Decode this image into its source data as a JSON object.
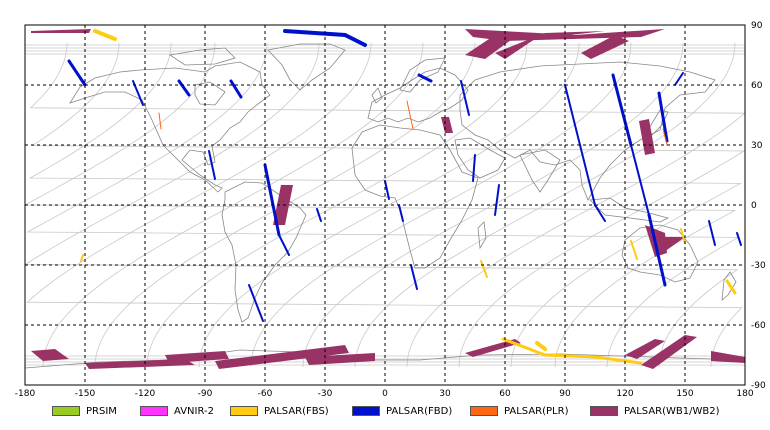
{
  "chart_data": {
    "type": "map-coverage",
    "projection": "equirectangular",
    "xlim": [
      -180,
      180
    ],
    "ylim": [
      -90,
      90
    ],
    "x_ticks": [
      "-180",
      "-150",
      "-120",
      "-90",
      "-60",
      "-30",
      "0",
      "30",
      "60",
      "90",
      "120",
      "150",
      "180"
    ],
    "y_ticks": [
      "90",
      "60",
      "30",
      "0",
      "-30",
      "-60",
      "-90"
    ],
    "grid": true,
    "legend": [
      {
        "name": "PRSIM",
        "color": "#99cc22"
      },
      {
        "name": "AVNIR-2",
        "color": "#ff33ff"
      },
      {
        "name": "PALSAR(FBS)",
        "color": "#ffcc11"
      },
      {
        "name": "PALSAR(FBD)",
        "color": "#0011cc"
      },
      {
        "name": "PALSAR(PLR)",
        "color": "#ff6611"
      },
      {
        "name": "PALSAR(WB1/WB2)",
        "color": "#993366"
      }
    ],
    "colors": {
      "wb": "#993366",
      "fbd": "#0011cc",
      "fbs": "#ffcc11",
      "plr": "#ff6611",
      "coast": "#888888",
      "orbit": "#c8c8c8"
    },
    "wb_swaths": [
      {
        "pts": [
          [
            -177,
            -73
          ],
          [
            -165,
            -72
          ],
          [
            -158,
            -77
          ],
          [
            -171,
            -78
          ]
        ]
      },
      {
        "pts": [
          [
            -150,
            -79
          ],
          [
            -100,
            -77
          ],
          [
            -95,
            -80
          ],
          [
            -148,
            -82
          ]
        ]
      },
      {
        "pts": [
          [
            -110,
            -75
          ],
          [
            -80,
            -73
          ],
          [
            -78,
            -77
          ],
          [
            -108,
            -79
          ]
        ]
      },
      {
        "pts": [
          [
            -85,
            -78
          ],
          [
            -20,
            -70
          ],
          [
            -18,
            -74
          ],
          [
            -83,
            -82
          ]
        ]
      },
      {
        "pts": [
          [
            -40,
            -76
          ],
          [
            -5,
            -74
          ],
          [
            -5,
            -78
          ],
          [
            -38,
            -80
          ]
        ]
      },
      {
        "pts": [
          [
            40,
            -74
          ],
          [
            65,
            -67
          ],
          [
            68,
            -69
          ],
          [
            44,
            -76
          ]
        ]
      },
      {
        "pts": [
          [
            120,
            -75
          ],
          [
            135,
            -67
          ],
          [
            140,
            -68
          ],
          [
            126,
            -77
          ]
        ]
      },
      {
        "pts": [
          [
            128,
            -80
          ],
          [
            150,
            -65
          ],
          [
            156,
            -66
          ],
          [
            134,
            -82
          ]
        ]
      },
      {
        "pts": [
          [
            163,
            -73
          ],
          [
            180,
            -76
          ],
          [
            180,
            -79
          ],
          [
            163,
            -78
          ]
        ]
      },
      {
        "pts": [
          [
            -177,
            87
          ],
          [
            -147,
            88
          ],
          [
            -148,
            86
          ],
          [
            -177,
            86
          ]
        ]
      },
      {
        "pts": [
          [
            40,
            88
          ],
          [
            95,
            85
          ],
          [
            140,
            88
          ],
          [
            128,
            84
          ],
          [
            60,
            82
          ],
          [
            44,
            84
          ]
        ]
      },
      {
        "pts": [
          [
            55,
            76
          ],
          [
            80,
            86
          ],
          [
            110,
            87
          ],
          [
            75,
            83
          ],
          [
            60,
            73
          ]
        ]
      },
      {
        "pts": [
          [
            40,
            75
          ],
          [
            55,
            85
          ],
          [
            65,
            84
          ],
          [
            50,
            73
          ]
        ]
      },
      {
        "pts": [
          [
            98,
            76
          ],
          [
            115,
            85
          ],
          [
            122,
            82
          ],
          [
            103,
            73
          ]
        ]
      },
      {
        "pts": [
          [
            28,
            44
          ],
          [
            32,
            44
          ],
          [
            34,
            36
          ],
          [
            30,
            36
          ]
        ]
      },
      {
        "pts": [
          [
            -52,
            10
          ],
          [
            -46,
            10
          ],
          [
            -50,
            -10
          ],
          [
            -56,
            -10
          ]
        ]
      },
      {
        "pts": [
          [
            127,
            42
          ],
          [
            132,
            43
          ],
          [
            135,
            26
          ],
          [
            130,
            25
          ]
        ]
      },
      {
        "pts": [
          [
            130,
            -10
          ],
          [
            140,
            -14
          ],
          [
            141,
            -24
          ],
          [
            135,
            -26
          ]
        ]
      },
      {
        "pts": [
          [
            140,
            -16
          ],
          [
            150,
            -16
          ],
          [
            136,
            -26
          ],
          [
            135,
            -22
          ]
        ]
      }
    ],
    "fbd_tracks": [
      {
        "pts": [
          [
            -158,
            72
          ],
          [
            -150,
            60
          ]
        ],
        "w": 3
      },
      {
        "pts": [
          [
            -126,
            62
          ],
          [
            -121,
            50
          ]
        ],
        "w": 2
      },
      {
        "pts": [
          [
            -103,
            62
          ],
          [
            -98,
            55
          ]
        ],
        "w": 3
      },
      {
        "pts": [
          [
            -77,
            62
          ],
          [
            -72,
            54
          ]
        ],
        "w": 3
      },
      {
        "pts": [
          [
            -88,
            27
          ],
          [
            -85,
            13
          ]
        ],
        "w": 2
      },
      {
        "pts": [
          [
            -60,
            20
          ],
          [
            -53,
            -15
          ]
        ],
        "w": 3
      },
      {
        "pts": [
          [
            -53,
            -15
          ],
          [
            -48,
            -25
          ]
        ],
        "w": 2
      },
      {
        "pts": [
          [
            -61,
            -58
          ],
          [
            -68,
            -40
          ]
        ],
        "w": 2
      },
      {
        "pts": [
          [
            -50,
            87
          ],
          [
            -20,
            85
          ],
          [
            -10,
            80
          ]
        ],
        "w": 4
      },
      {
        "pts": [
          [
            -34,
            -2
          ],
          [
            -32,
            -8
          ]
        ],
        "w": 2
      },
      {
        "pts": [
          [
            0,
            12
          ],
          [
            2,
            3
          ]
        ],
        "w": 2
      },
      {
        "pts": [
          [
            7,
            0
          ],
          [
            9,
            -8
          ]
        ],
        "w": 2
      },
      {
        "pts": [
          [
            13,
            -30
          ],
          [
            16,
            -42
          ]
        ],
        "w": 2
      },
      {
        "pts": [
          [
            23,
            62
          ],
          [
            17,
            65
          ]
        ],
        "w": 3
      },
      {
        "pts": [
          [
            38,
            62
          ],
          [
            42,
            45
          ]
        ],
        "w": 2
      },
      {
        "pts": [
          [
            45,
            25
          ],
          [
            44,
            12
          ]
        ],
        "w": 2
      },
      {
        "pts": [
          [
            57,
            10
          ],
          [
            55,
            -5
          ]
        ],
        "w": 2
      },
      {
        "pts": [
          [
            90,
            60
          ],
          [
            105,
            0
          ]
        ],
        "w": 2
      },
      {
        "pts": [
          [
            105,
            0
          ],
          [
            110,
            -8
          ]
        ],
        "w": 2
      },
      {
        "pts": [
          [
            114,
            65
          ],
          [
            123,
            30
          ]
        ],
        "w": 3
      },
      {
        "pts": [
          [
            123,
            30
          ],
          [
            132,
            -5
          ]
        ],
        "w": 2
      },
      {
        "pts": [
          [
            132,
            -5
          ],
          [
            140,
            -40
          ]
        ],
        "w": 3
      },
      {
        "pts": [
          [
            137,
            56
          ],
          [
            141,
            32
          ]
        ],
        "w": 3
      },
      {
        "pts": [
          [
            149,
            66
          ],
          [
            145,
            60
          ]
        ],
        "w": 2
      },
      {
        "pts": [
          [
            165,
            -20
          ],
          [
            162,
            -8
          ]
        ],
        "w": 2
      },
      {
        "pts": [
          [
            178,
            -20
          ],
          [
            176,
            -14
          ]
        ],
        "w": 2
      }
    ],
    "fbs_tracks": [
      {
        "pts": [
          [
            -145,
            87
          ],
          [
            -135,
            83
          ]
        ],
        "w": 4
      },
      {
        "pts": [
          [
            59,
            -67
          ],
          [
            80,
            -75
          ],
          [
            105,
            -76
          ],
          [
            128,
            -79
          ]
        ],
        "w": 3
      },
      {
        "pts": [
          [
            76,
            -69
          ],
          [
            80,
            -72
          ]
        ],
        "w": 4
      },
      {
        "pts": [
          [
            123,
            -18
          ],
          [
            126,
            -27
          ]
        ],
        "w": 2
      },
      {
        "pts": [
          [
            148,
            -12
          ],
          [
            150,
            -19
          ]
        ],
        "w": 2
      },
      {
        "pts": [
          [
            171,
            -38
          ],
          [
            175,
            -44
          ]
        ],
        "w": 3
      },
      {
        "pts": [
          [
            48,
            -28
          ],
          [
            51,
            -36
          ]
        ],
        "w": 2
      },
      {
        "pts": [
          [
            -151,
            -25
          ],
          [
            -152,
            -28
          ]
        ],
        "w": 2
      }
    ],
    "plr_tracks": [
      {
        "pts": [
          [
            -113,
            46
          ],
          [
            -112,
            38
          ]
        ],
        "w": 1
      },
      {
        "pts": [
          [
            11,
            52
          ],
          [
            14,
            38
          ]
        ],
        "w": 1
      },
      {
        "pts": [
          [
            139,
            38
          ],
          [
            141,
            30
          ]
        ],
        "w": 1
      }
    ]
  }
}
